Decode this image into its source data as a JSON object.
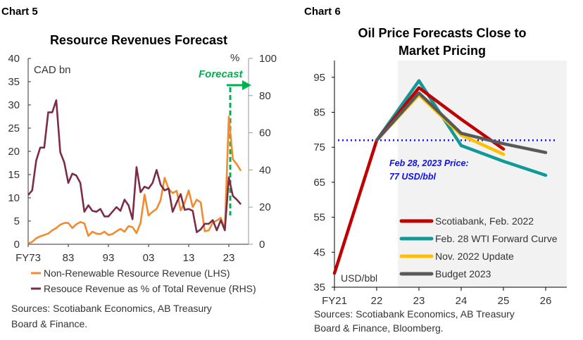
{
  "chart_data": [
    {
      "label": "Chart 5",
      "type": "line",
      "title": "Resource Revenues Forecast",
      "left_unit": "CAD bn",
      "right_unit": "%",
      "ylim": [
        0,
        40
      ],
      "yticks": [
        0,
        5,
        10,
        15,
        20,
        25,
        30,
        35,
        40
      ],
      "y2lim": [
        0,
        100
      ],
      "y2ticks": [
        0,
        20,
        40,
        60,
        80,
        100
      ],
      "xstart": 1973,
      "xend": 2026,
      "xtick_years": [
        1973,
        1983,
        1993,
        2003,
        2013,
        2023
      ],
      "xtick_labels": [
        "FY73",
        "83",
        "93",
        "03",
        "13",
        "23"
      ],
      "annotation": "Forecast",
      "forecast_year": 2023,
      "series": [
        {
          "name": "Non-Renewable Resource Revenue (LHS)",
          "axis": "left",
          "color": "#f28a30",
          "values": [
            0.2,
            0.5,
            1.3,
            1.7,
            2.0,
            2.3,
            3.0,
            3.5,
            4.2,
            4.6,
            4.6,
            3.5,
            4.3,
            4.8,
            4.5,
            1.8,
            2.7,
            2.3,
            2.2,
            2.7,
            2.0,
            2.2,
            2.8,
            3.3,
            2.7,
            3.9,
            3.7,
            2.4,
            4.6,
            10.7,
            6.2,
            7.0,
            7.6,
            9.5,
            14.3,
            11.9,
            11.0,
            11.5,
            7.3,
            9.0,
            11.6,
            8.0,
            9.6,
            9.0,
            2.8,
            3.0,
            4.7,
            5.1,
            5.7,
            3.2,
            27.5,
            18.3,
            17.2,
            15.8
          ]
        },
        {
          "name": "Resouce Revenue as % of Total Revenue (RHS)",
          "axis": "right",
          "color": "#7b2d45",
          "values": [
            26.5,
            29,
            45,
            52,
            52,
            71,
            71,
            77.5,
            49.5,
            44,
            33,
            38,
            37,
            33,
            17.5,
            21,
            18,
            17.5,
            19,
            15,
            15,
            17.5,
            20,
            18,
            24,
            21,
            13.5,
            41.5,
            28,
            31,
            30,
            33,
            40,
            32,
            29,
            30,
            17.5,
            22.5,
            27,
            18.5,
            19,
            18,
            6.5,
            8,
            11,
            11,
            13,
            7.5,
            13,
            7.5,
            36,
            26,
            24,
            21.5
          ]
        }
      ],
      "source": "Sources: Scotiabank Economics, AB Treasury Board & Finance."
    },
    {
      "label": "Chart 6",
      "type": "line",
      "title": "Oil Price Forecasts Close to Market Pricing",
      "unit": "USD/bbl",
      "ylim": [
        35,
        100
      ],
      "yticks": [
        35,
        45,
        55,
        65,
        75,
        85,
        95
      ],
      "categories": [
        "FY21",
        "22",
        "23",
        "24",
        "25",
        "26"
      ],
      "reference": {
        "value": 77,
        "label1": "Feb 28, 2023 Price:",
        "label2": "77 USD/bbl",
        "color": "#1010ee"
      },
      "shaded_from": "22.5",
      "legend_position": "bottom-right",
      "series": [
        {
          "name": "Scotiabank, Feb. 2022",
          "color": "#c00000",
          "values": [
            39,
            77,
            92,
            83,
            74.5,
            null
          ]
        },
        {
          "name": "Feb. 28 WTI Forward Curve",
          "color": "#119999",
          "values": [
            null,
            77,
            94,
            75.5,
            71,
            67
          ]
        },
        {
          "name": "Nov. 2022 Update",
          "color": "#ffc000",
          "values": [
            null,
            77,
            90,
            78.5,
            73,
            null
          ]
        },
        {
          "name": "Budget 2023",
          "color": "#595959",
          "values": [
            null,
            77,
            90.5,
            79,
            76,
            73.5
          ]
        }
      ],
      "source": "Sources: Scotiabank Economics, AB Treasury Board & Finance, Bloomberg."
    }
  ]
}
